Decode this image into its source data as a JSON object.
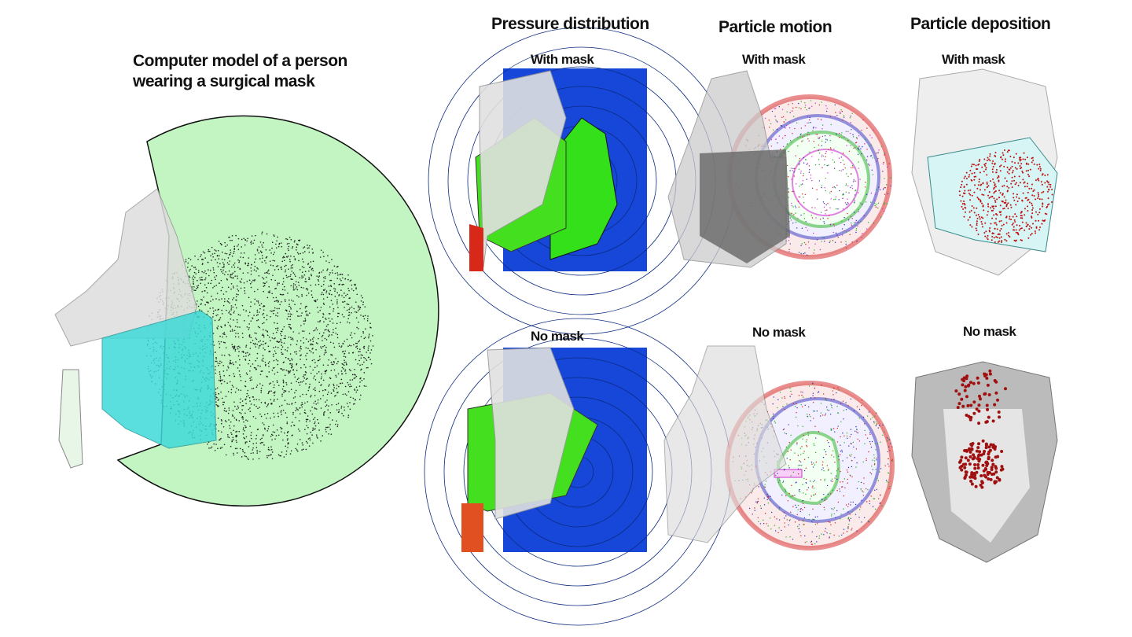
{
  "main_title_line1": "Computer model of a person",
  "main_title_line2": "wearing a surgical mask",
  "columns": [
    {
      "title": "Pressure distribution",
      "top_label": "With mask",
      "bottom_label": "No mask"
    },
    {
      "title": "Particle motion",
      "top_label": "With mask",
      "bottom_label": "No mask"
    },
    {
      "title": "Particle deposition",
      "top_label": "With mask",
      "bottom_label": "No mask"
    }
  ],
  "colors": {
    "domain_fill": "#c2f5c2",
    "mask": "#3fd9d9",
    "pressure_low": "#1747d8",
    "pressure_mid": "#33e01a",
    "pressure_high": "#d8281a",
    "particles_red": "#d42020",
    "particles_blue": "#3030c0",
    "particles_green": "#20b020",
    "particles_magenta": "#d030d0"
  }
}
